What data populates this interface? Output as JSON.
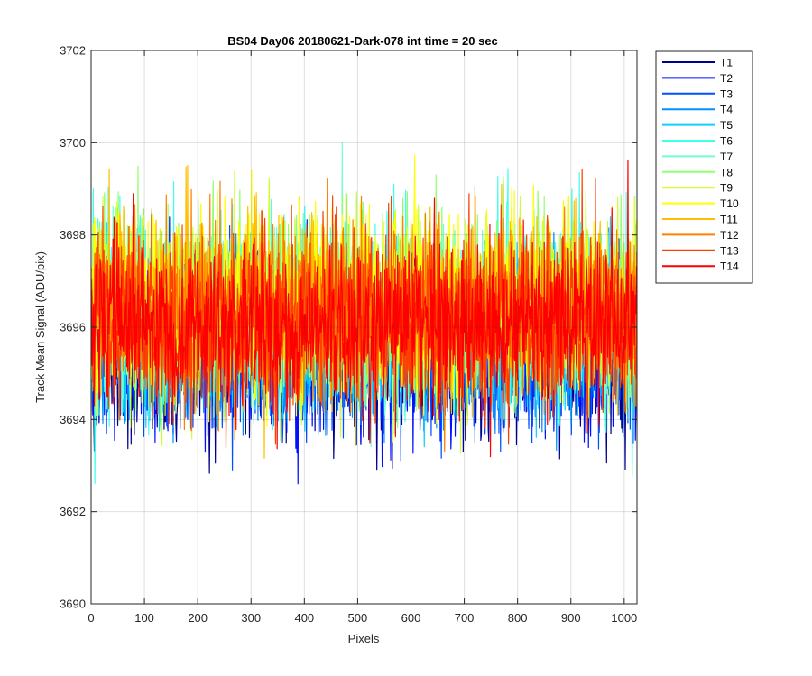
{
  "chart_data": {
    "type": "line",
    "title": "BS04 Day06 20180621-Dark-078 int time = 20 sec",
    "xlabel": "Pixels",
    "ylabel": "Track Mean Signal (ADU/pix)",
    "xlim": [
      0,
      1024
    ],
    "ylim": [
      3690,
      3702
    ],
    "xticks": [
      0,
      100,
      200,
      300,
      400,
      500,
      600,
      700,
      800,
      900,
      1000
    ],
    "yticks": [
      3690,
      3692,
      3694,
      3696,
      3698,
      3700,
      3702
    ],
    "grid": true,
    "legend_position": "outside-top-right",
    "num_points": 1024,
    "series": [
      {
        "name": "T1",
        "color": "#00008f",
        "mean": 3695.3,
        "std": 0.85
      },
      {
        "name": "T2",
        "color": "#0010ff",
        "mean": 3695.4,
        "std": 0.85
      },
      {
        "name": "T3",
        "color": "#0050ff",
        "mean": 3695.5,
        "std": 0.85
      },
      {
        "name": "T4",
        "color": "#0090ff",
        "mean": 3695.6,
        "std": 0.85
      },
      {
        "name": "T5",
        "color": "#10cfff",
        "mean": 3695.8,
        "std": 0.9
      },
      {
        "name": "T6",
        "color": "#40ffef",
        "mean": 3696.4,
        "std": 1.0
      },
      {
        "name": "T7",
        "color": "#70ffcf",
        "mean": 3696.3,
        "std": 0.95
      },
      {
        "name": "T8",
        "color": "#8fff70",
        "mean": 3696.4,
        "std": 0.95
      },
      {
        "name": "T9",
        "color": "#cfff30",
        "mean": 3696.5,
        "std": 0.95
      },
      {
        "name": "T10",
        "color": "#ffff00",
        "mean": 3696.6,
        "std": 0.95
      },
      {
        "name": "T11",
        "color": "#ffbf00",
        "mean": 3696.4,
        "std": 0.95
      },
      {
        "name": "T12",
        "color": "#ff8000",
        "mean": 3696.3,
        "std": 0.95
      },
      {
        "name": "T13",
        "color": "#ff4000",
        "mean": 3696.2,
        "std": 0.95
      },
      {
        "name": "T14",
        "color": "#ff0000",
        "mean": 3696.0,
        "std": 0.9
      }
    ]
  }
}
